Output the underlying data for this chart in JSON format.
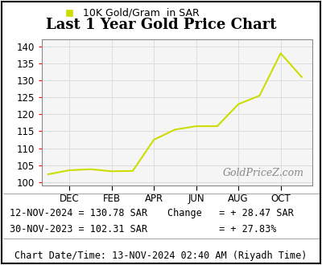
{
  "title": "Last 1 Year Gold Price Chart",
  "legend_label": "10K Gold/Gram  in SAR",
  "line_color": "#ccdd00",
  "watermark": "GoldPriceZ.com",
  "x_tick_labels": [
    "DEC",
    "FEB",
    "APR",
    "JUN",
    "AUG",
    "OCT"
  ],
  "x_tick_positions": [
    1,
    3,
    5,
    7,
    9,
    11
  ],
  "ylim": [
    99,
    142
  ],
  "yticks": [
    100,
    105,
    110,
    115,
    120,
    125,
    130,
    135,
    140
  ],
  "x_values": [
    0,
    1,
    2,
    3,
    4,
    5,
    6,
    7,
    8,
    9,
    10,
    11,
    12
  ],
  "y_values": [
    102.31,
    103.5,
    103.8,
    103.2,
    103.3,
    112.5,
    115.5,
    116.5,
    116.5,
    123.0,
    125.5,
    138.0,
    131.0
  ],
  "footer_left_line1": "12-NOV-2024 = 130.78 SAR",
  "footer_left_line2": "30-NOV-2023 = 102.31 SAR",
  "footer_right_line1": "Change   = + 28.47 SAR",
  "footer_right_line2": "         = + 27.83%",
  "footer_datetime": "Chart Date/Time: 13-NOV-2024 02:40 AM (Riyadh Time)",
  "background_color": "#ffffff",
  "plot_bg_color": "#f5f5f5",
  "grid_color": "#dddddd",
  "border_color": "#000000",
  "title_fontsize": 13,
  "legend_fontsize": 9,
  "tick_fontsize": 8.5,
  "footer_fontsize": 8.5,
  "watermark_fontsize": 9
}
